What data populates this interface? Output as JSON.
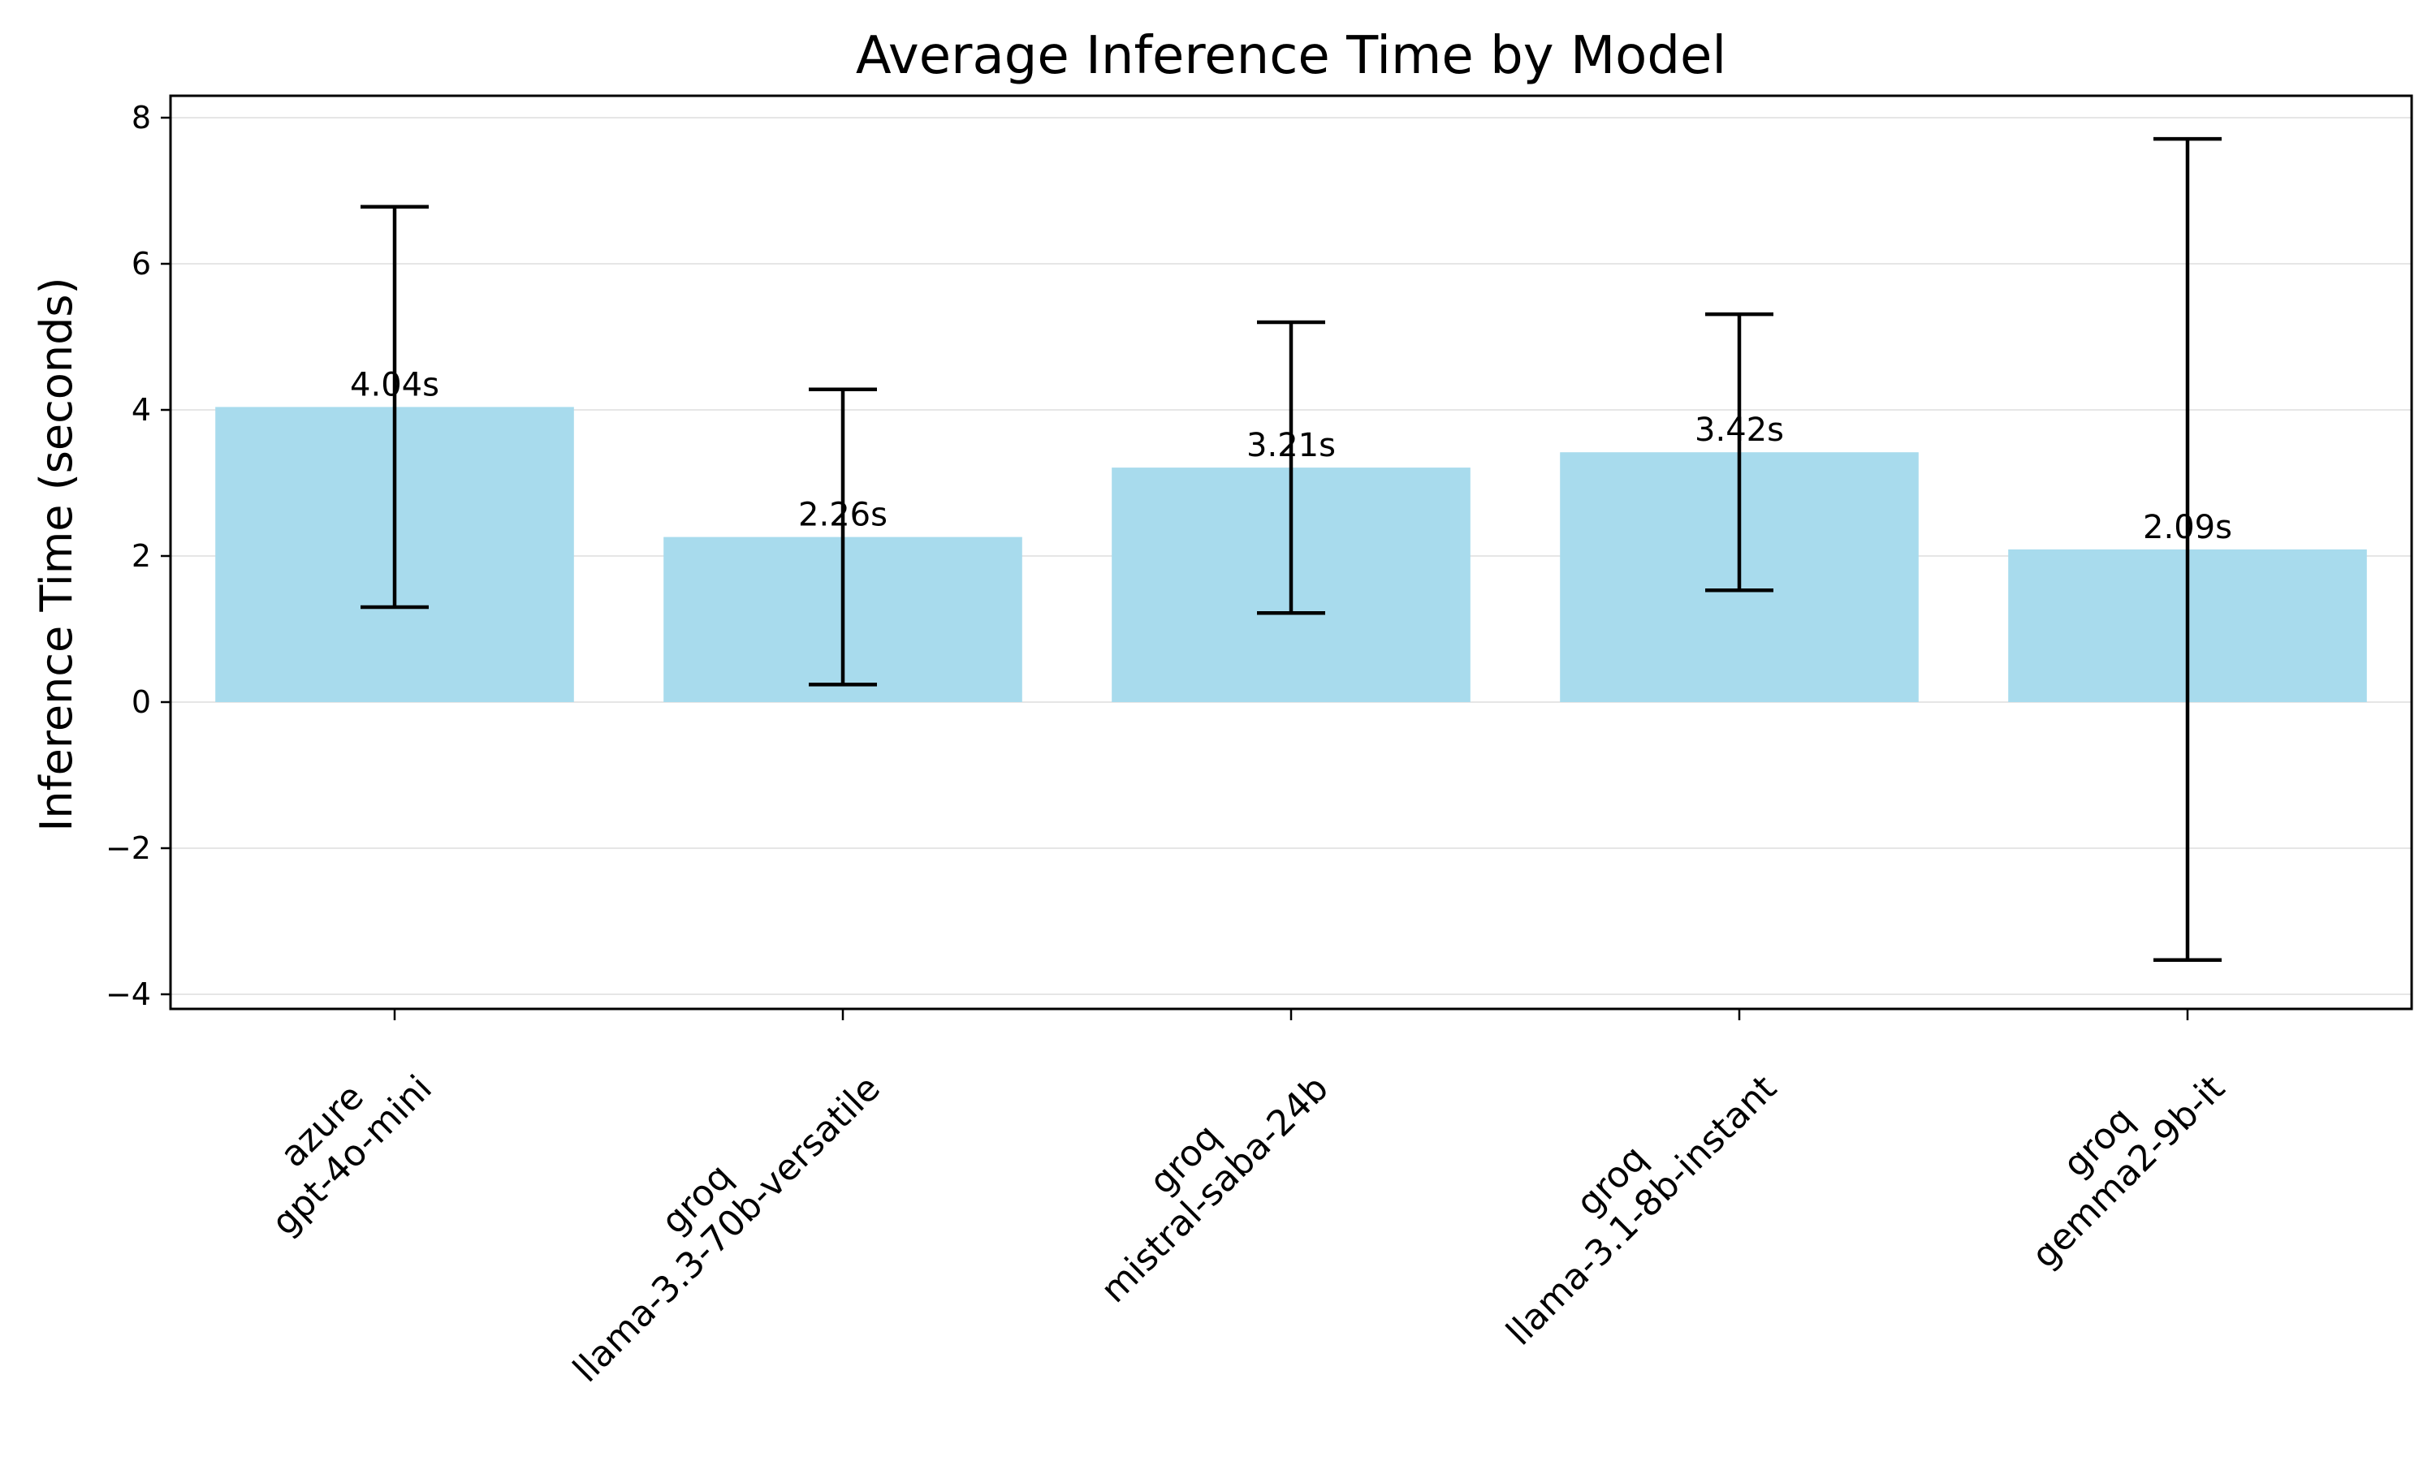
{
  "chart_data": {
    "type": "bar",
    "title": "Average Inference Time by Model",
    "xlabel": "",
    "ylabel": "Inference Time (seconds)",
    "categories": [
      [
        "azure",
        "gpt-4o-mini"
      ],
      [
        "groq",
        "llama-3.3-70b-versatile"
      ],
      [
        "groq",
        "mistral-saba-24b"
      ],
      [
        "groq",
        "llama-3.1-8b-instant"
      ],
      [
        "groq",
        "gemma2-9b-it"
      ]
    ],
    "values": [
      4.04,
      2.26,
      3.21,
      3.42,
      2.09
    ],
    "value_labels": [
      "4.04s",
      "2.26s",
      "3.21s",
      "3.42s",
      "2.09s"
    ],
    "error": [
      2.74,
      2.02,
      1.99,
      1.89,
      5.62
    ],
    "ylim": [
      -4.2,
      8.3
    ],
    "yticks": [
      -4,
      -2,
      0,
      2,
      4,
      6,
      8
    ],
    "ytick_labels": [
      "−4",
      "−2",
      "0",
      "2",
      "4",
      "6",
      "8"
    ],
    "grid": "y",
    "bar_color": "#a8dbed",
    "error_color": "#000000",
    "grid_color": "#e6e6e6"
  }
}
